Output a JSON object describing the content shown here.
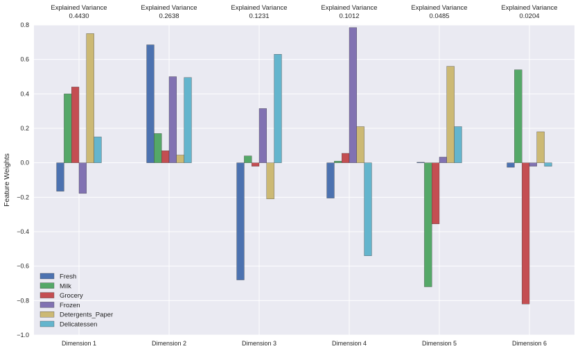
{
  "chart_data": {
    "type": "bar",
    "ylabel": "Feature Weights",
    "ylim": [
      -1.0,
      0.8
    ],
    "yticks": [
      -1.0,
      -0.8,
      -0.6,
      -0.4,
      -0.2,
      0.0,
      0.2,
      0.4,
      0.6,
      0.8
    ],
    "ytick_labels": [
      "−1.0",
      "−0.8",
      "−0.6",
      "−0.4",
      "−0.2",
      "0.0",
      "0.2",
      "0.4",
      "0.6",
      "0.8"
    ],
    "grid": true,
    "legend_position": "lower-left",
    "categories": [
      "Dimension 1",
      "Dimension 2",
      "Dimension 3",
      "Dimension 4",
      "Dimension 5",
      "Dimension 6"
    ],
    "annotations": [
      {
        "label": "Explained Variance",
        "value": "0.4430"
      },
      {
        "label": "Explained Variance",
        "value": "0.2638"
      },
      {
        "label": "Explained Variance",
        "value": "0.1231"
      },
      {
        "label": "Explained Variance",
        "value": "0.1012"
      },
      {
        "label": "Explained Variance",
        "value": "0.0485"
      },
      {
        "label": "Explained Variance",
        "value": "0.0204"
      }
    ],
    "series": [
      {
        "name": "Fresh",
        "color": "#4c72b0",
        "values": [
          -0.165,
          0.685,
          -0.68,
          -0.205,
          0.003,
          -0.026
        ]
      },
      {
        "name": "Milk",
        "color": "#55a868",
        "values": [
          0.4,
          0.17,
          0.04,
          0.01,
          -0.72,
          0.54
        ]
      },
      {
        "name": "Grocery",
        "color": "#c44e52",
        "values": [
          0.44,
          0.07,
          -0.02,
          0.055,
          -0.355,
          -0.82
        ]
      },
      {
        "name": "Frozen",
        "color": "#8172b2",
        "values": [
          -0.178,
          0.5,
          0.315,
          0.785,
          0.033,
          -0.02
        ]
      },
      {
        "name": "Detergents_Paper",
        "color": "#ccb974",
        "values": [
          0.75,
          0.045,
          -0.21,
          0.21,
          0.56,
          0.18
        ]
      },
      {
        "name": "Delicatessen",
        "color": "#64b5cd",
        "values": [
          0.15,
          0.495,
          0.63,
          -0.54,
          0.21,
          -0.02
        ]
      }
    ]
  }
}
